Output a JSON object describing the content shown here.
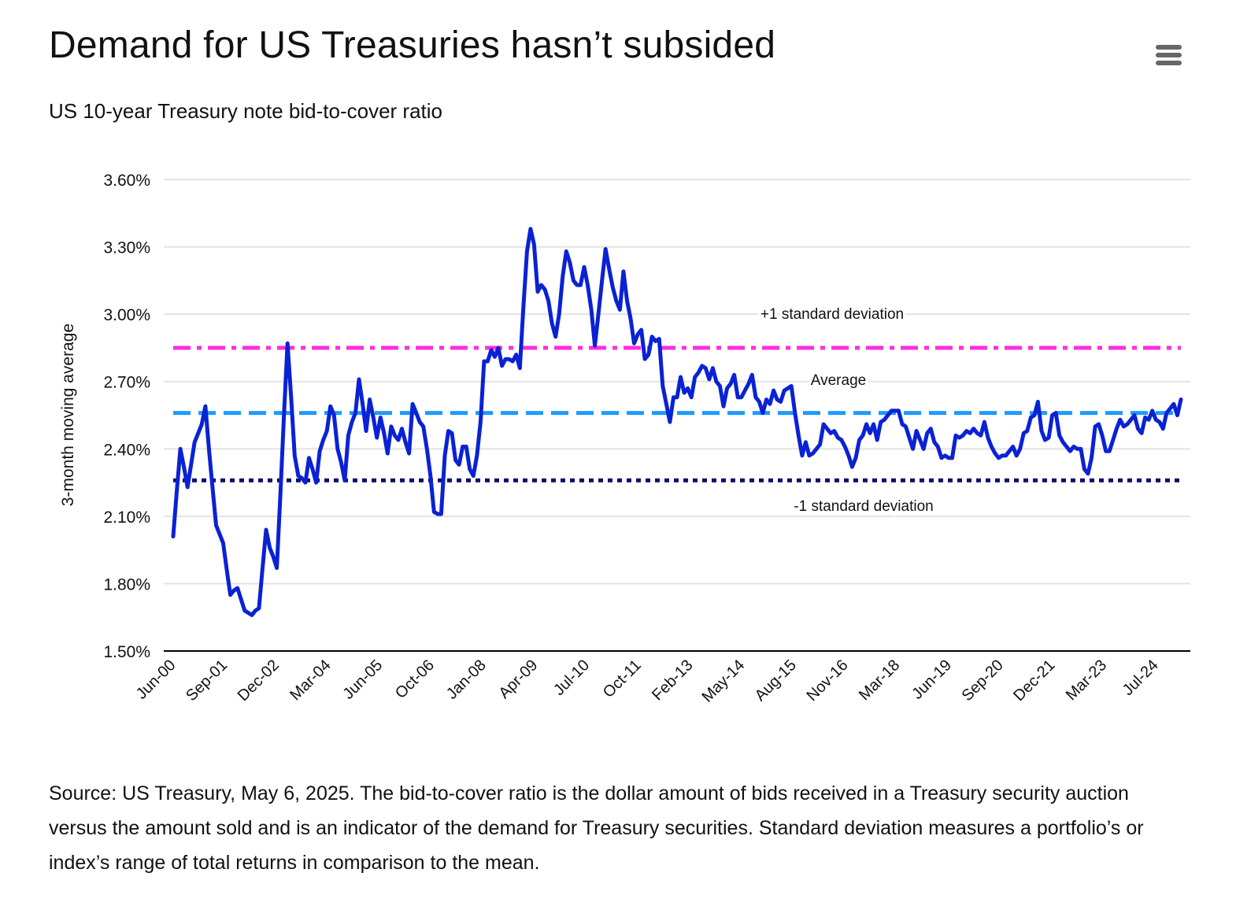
{
  "header": {
    "title": "Demand for US Treasuries hasn’t subsided",
    "subtitle": "US 10-year Treasury note bid-to-cover ratio",
    "menu_icon": "hamburger-menu-icon"
  },
  "caption": "Source: US Treasury, May 6, 2025. The bid-to-cover ratio is the dollar amount of bids received in a Treasury security auction versus the amount sold and is an indicator of the demand for Treasury securities. Standard deviation measures a portfolio’s or index’s range of total returns in comparison to the mean.",
  "colors": {
    "series": "#0A22D4",
    "plus_sd": "#FF2EE0",
    "average": "#1E9BFF",
    "minus_sd": "#0A0F6E",
    "grid": "#E3E3E3",
    "axis": "#000000"
  },
  "chart_data": {
    "type": "line",
    "title": "Demand for US Treasuries hasn’t subsided",
    "subtitle": "US 10-year Treasury note bid-to-cover ratio",
    "xlabel": "",
    "ylabel": "3-month moving average",
    "ylim": [
      1.5,
      3.6
    ],
    "y_ticks": [
      1.5,
      1.8,
      2.1,
      2.4,
      2.7,
      3.0,
      3.3,
      3.6
    ],
    "y_tick_labels": [
      "1.50%",
      "1.80%",
      "2.10%",
      "2.40%",
      "2.70%",
      "3.00%",
      "3.30%",
      "3.60%"
    ],
    "x_tick_labels": [
      "Jun-00",
      "Sep-01",
      "Dec-02",
      "Mar-04",
      "Jun-05",
      "Oct-06",
      "Jan-08",
      "Apr-09",
      "Jul-10",
      "Oct-11",
      "Feb-13",
      "May-14",
      "Aug-15",
      "Nov-16",
      "Mar-18",
      "Jun-19",
      "Sep-20",
      "Dec-21",
      "Mar-23",
      "Jul-24"
    ],
    "grid": true,
    "legend": "none",
    "reference_lines": [
      {
        "name": "+1 standard deviation",
        "value": 2.85,
        "style": "dash-dot",
        "label": "+1 standard deviation"
      },
      {
        "name": "Average",
        "value": 2.56,
        "style": "dashed",
        "label": "Average"
      },
      {
        "name": "-1 standard deviation",
        "value": 2.26,
        "style": "dotted",
        "label": "-1 standard deviation"
      }
    ],
    "series": [
      {
        "name": "3-month moving average bid-to-cover ratio",
        "x_start": "Jun-00",
        "x_end": "Apr-25",
        "values": [
          2.01,
          2.21,
          2.4,
          2.32,
          2.23,
          2.33,
          2.43,
          2.47,
          2.51,
          2.59,
          2.4,
          2.23,
          2.06,
          2.02,
          1.98,
          1.86,
          1.75,
          1.77,
          1.78,
          1.73,
          1.68,
          1.67,
          1.66,
          1.68,
          1.69,
          1.87,
          2.04,
          1.96,
          1.92,
          1.87,
          2.2,
          2.55,
          2.87,
          2.63,
          2.37,
          2.28,
          2.27,
          2.25,
          2.36,
          2.31,
          2.25,
          2.39,
          2.44,
          2.48,
          2.59,
          2.55,
          2.4,
          2.34,
          2.26,
          2.46,
          2.52,
          2.56,
          2.71,
          2.6,
          2.48,
          2.62,
          2.54,
          2.45,
          2.54,
          2.47,
          2.38,
          2.5,
          2.46,
          2.44,
          2.49,
          2.43,
          2.38,
          2.6,
          2.56,
          2.52,
          2.5,
          2.4,
          2.28,
          2.12,
          2.11,
          2.11,
          2.37,
          2.48,
          2.47,
          2.35,
          2.33,
          2.41,
          2.41,
          2.31,
          2.28,
          2.37,
          2.52,
          2.79,
          2.79,
          2.84,
          2.81,
          2.85,
          2.77,
          2.8,
          2.8,
          2.79,
          2.82,
          2.76,
          3.03,
          3.28,
          3.38,
          3.31,
          3.1,
          3.13,
          3.11,
          3.06,
          2.96,
          2.9,
          3.0,
          3.17,
          3.28,
          3.23,
          3.15,
          3.13,
          3.13,
          3.21,
          3.13,
          3.02,
          2.86,
          3.0,
          3.15,
          3.29,
          3.2,
          3.12,
          3.06,
          3.02,
          3.19,
          3.06,
          2.98,
          2.87,
          2.91,
          2.93,
          2.8,
          2.82,
          2.9,
          2.88,
          2.89,
          2.68,
          2.6,
          2.52,
          2.63,
          2.63,
          2.72,
          2.65,
          2.67,
          2.63,
          2.72,
          2.74,
          2.77,
          2.76,
          2.71,
          2.76,
          2.7,
          2.68,
          2.59,
          2.67,
          2.69,
          2.73,
          2.63,
          2.63,
          2.66,
          2.69,
          2.73,
          2.63,
          2.61,
          2.56,
          2.62,
          2.6,
          2.66,
          2.62,
          2.61,
          2.66,
          2.67,
          2.68,
          2.56,
          2.46,
          2.37,
          2.43,
          2.37,
          2.38,
          2.4,
          2.42,
          2.51,
          2.49,
          2.47,
          2.48,
          2.45,
          2.44,
          2.41,
          2.37,
          2.32,
          2.36,
          2.44,
          2.46,
          2.51,
          2.47,
          2.51,
          2.44,
          2.52,
          2.53,
          2.55,
          2.57,
          2.57,
          2.57,
          2.51,
          2.5,
          2.45,
          2.4,
          2.48,
          2.44,
          2.4,
          2.47,
          2.49,
          2.43,
          2.41,
          2.36,
          2.37,
          2.36,
          2.36,
          2.46,
          2.45,
          2.46,
          2.48,
          2.47,
          2.49,
          2.47,
          2.46,
          2.52,
          2.45,
          2.41,
          2.38,
          2.36,
          2.37,
          2.37,
          2.39,
          2.41,
          2.37,
          2.4,
          2.47,
          2.48,
          2.54,
          2.55,
          2.61,
          2.48,
          2.44,
          2.45,
          2.55,
          2.56,
          2.46,
          2.43,
          2.41,
          2.39,
          2.41,
          2.4,
          2.4,
          2.31,
          2.29,
          2.36,
          2.5,
          2.51,
          2.46,
          2.39,
          2.39,
          2.44,
          2.49,
          2.53,
          2.5,
          2.51,
          2.53,
          2.55,
          2.49,
          2.47,
          2.54,
          2.53,
          2.57,
          2.53,
          2.52,
          2.49,
          2.56,
          2.58,
          2.6,
          2.55,
          2.62
        ]
      }
    ]
  }
}
